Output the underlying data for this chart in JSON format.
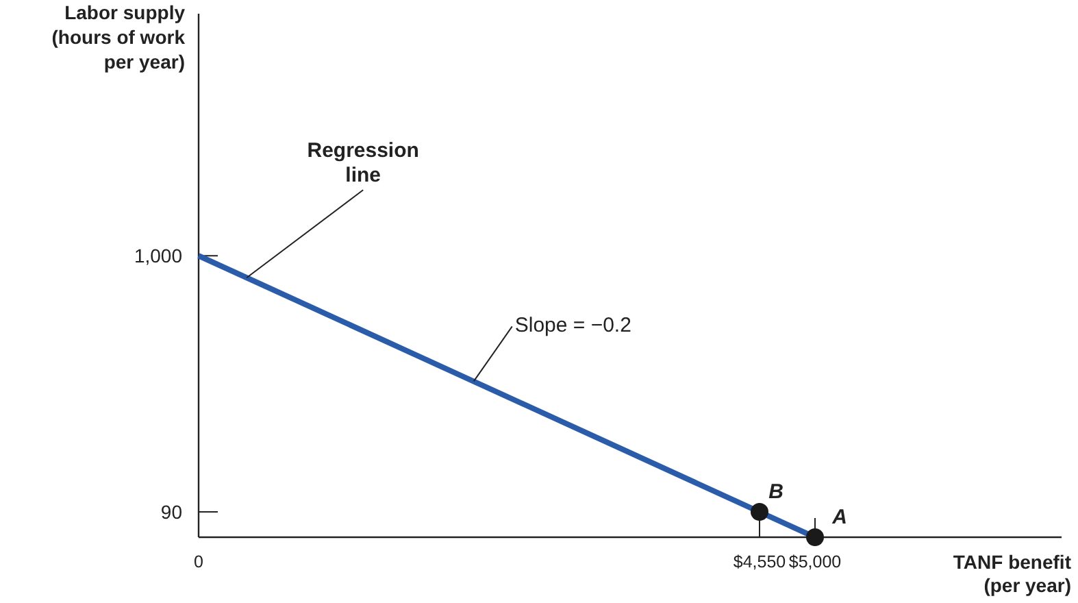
{
  "chart_data": {
    "type": "line",
    "xlabel": "TANF benefit\n(per year)",
    "ylabel": "Labor supply\n(hours of work\nper year)",
    "xlim": [
      0,
      7000
    ],
    "ylim": [
      0,
      1860
    ],
    "xticks": [
      0,
      {
        "value": 4550,
        "label": "$4,550"
      },
      {
        "value": 5000,
        "label": "$5,000"
      }
    ],
    "yticks": [
      90,
      {
        "value": 1000,
        "label": "1,000"
      }
    ],
    "grid": false,
    "series": [
      {
        "color": "#2a5caa",
        "x": [
          0,
          5000
        ],
        "values": [
          1000,
          0
        ],
        "marker": "none",
        "line_style": "solid"
      },
      {
        "type": "scatter",
        "color": "#1a1a1a",
        "x": [
          4550,
          5000
        ],
        "values": [
          90,
          0
        ],
        "marker": "circle"
      }
    ],
    "annotations": [
      {
        "text": "Regression\nline",
        "x": 390,
        "y": 922
      },
      {
        "text": "Slope = −0.2",
        "x": 2232,
        "y": 554
      },
      {
        "text": "B",
        "x": 4550,
        "y": 90
      },
      {
        "text": "A",
        "x": 5000,
        "y": 0
      }
    ]
  }
}
